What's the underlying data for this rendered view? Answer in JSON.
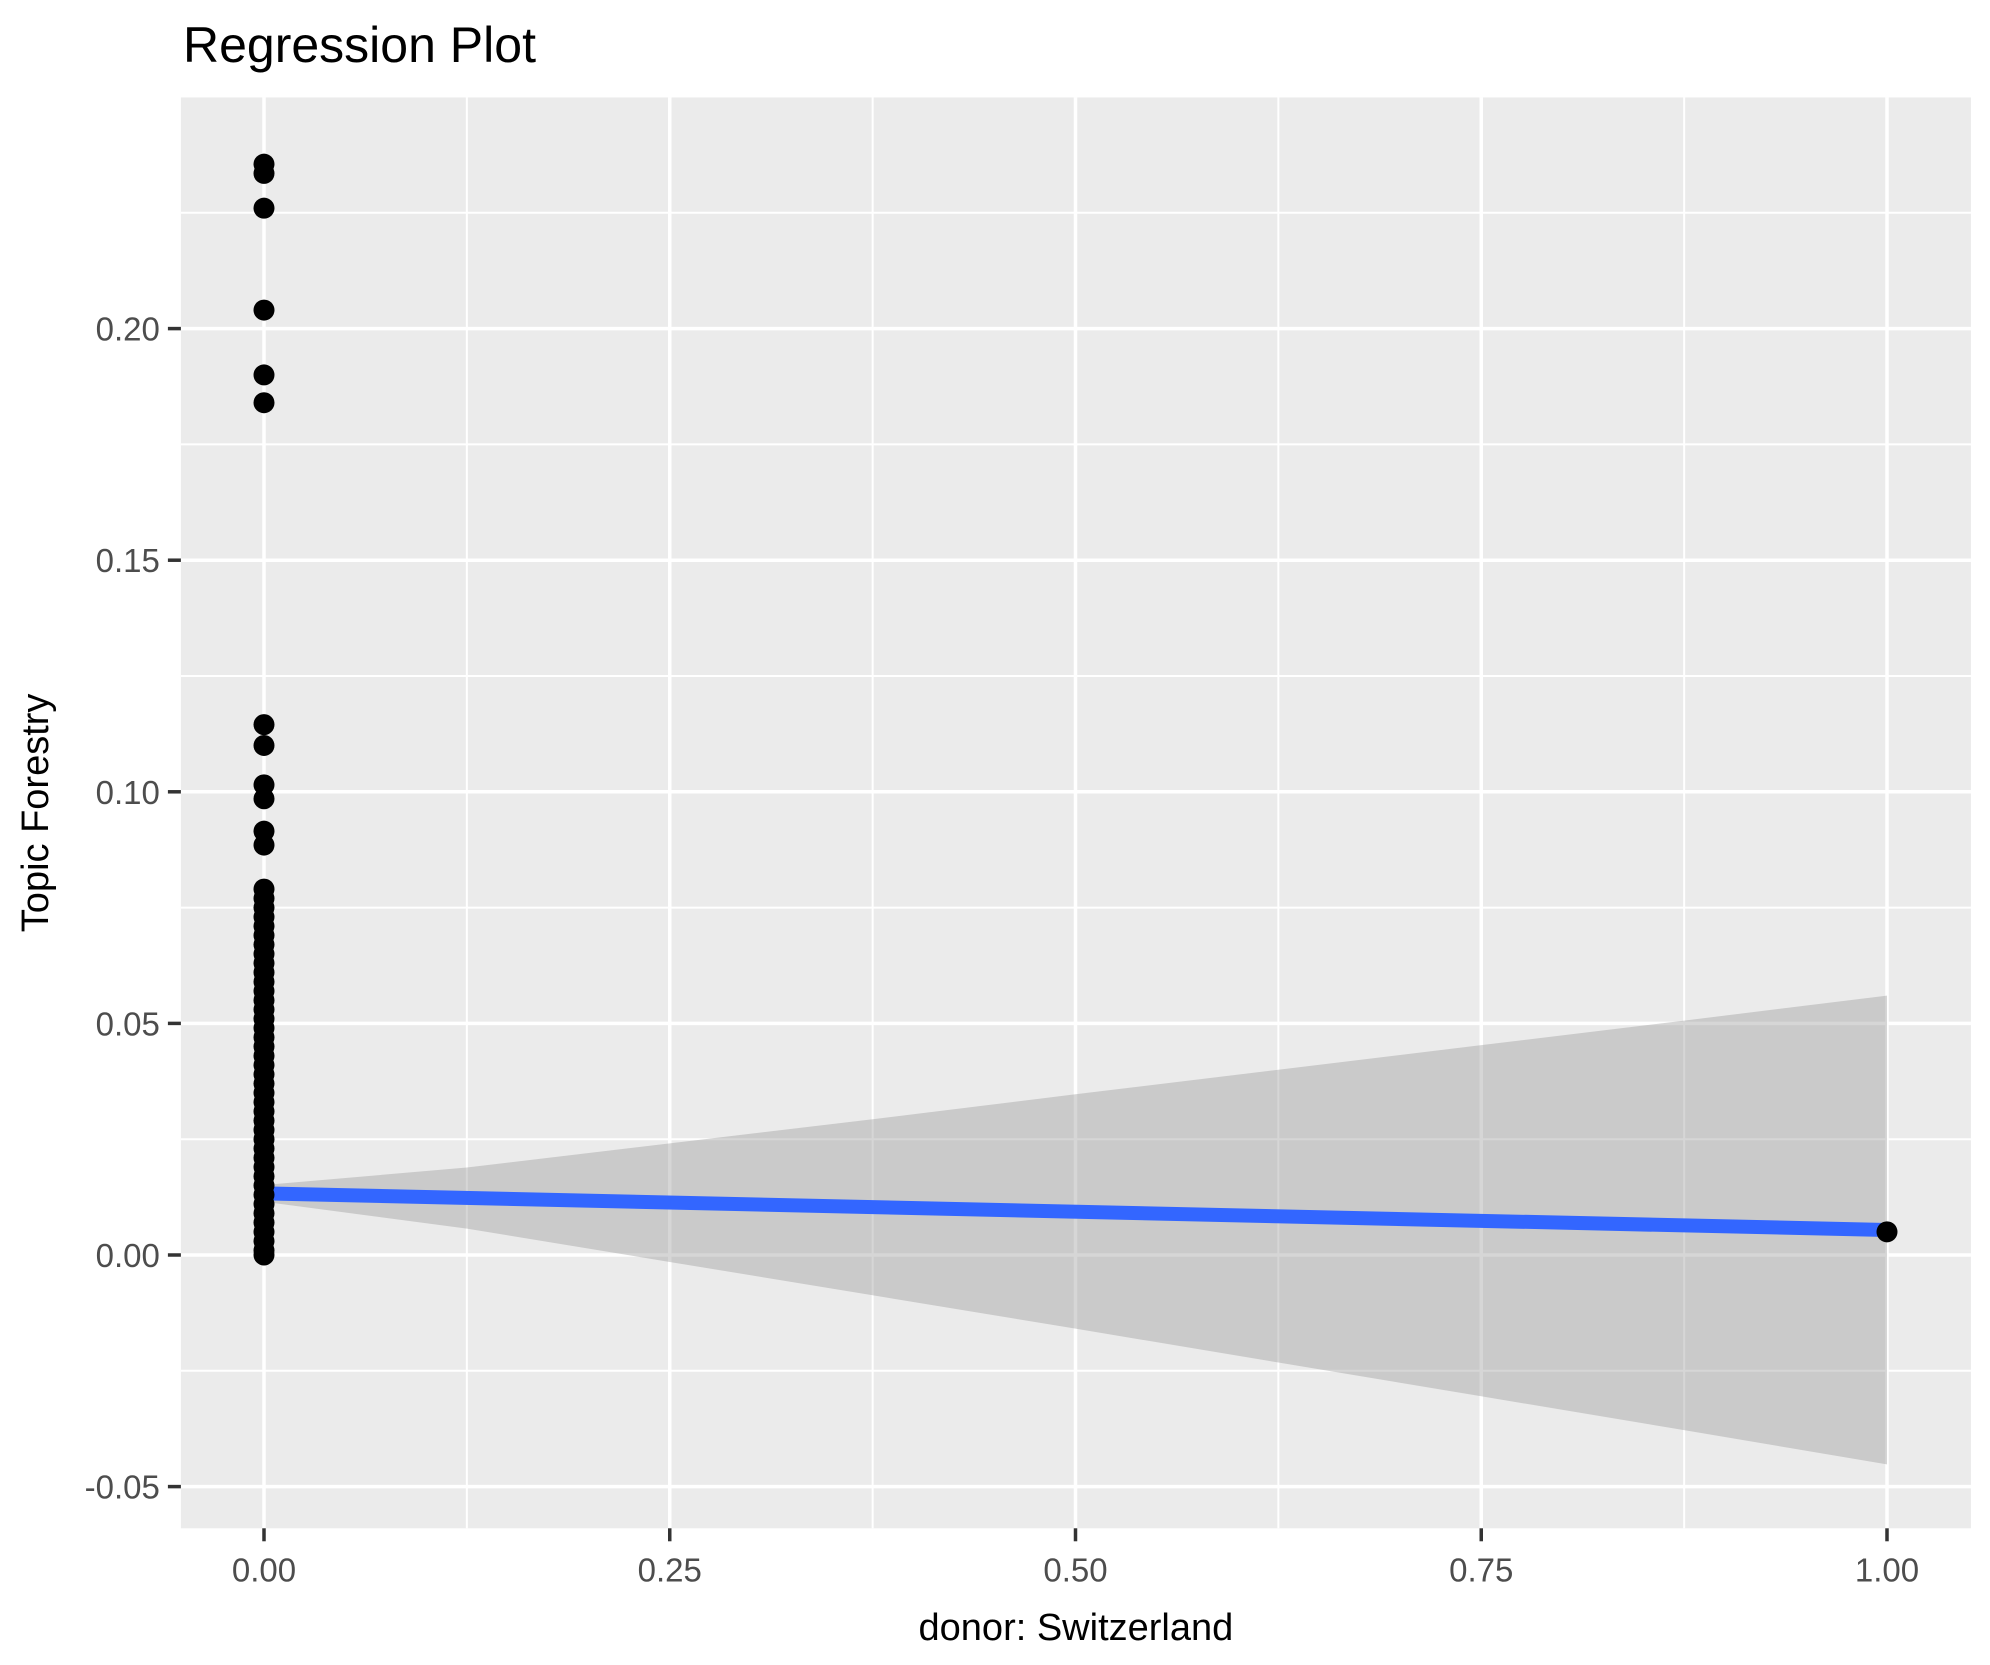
{
  "chart_data": {
    "type": "scatter",
    "title": "Regression Plot",
    "xlabel": "donor: Switzerland",
    "ylabel": "Topic Forestry",
    "legend": "none",
    "grid": "white major+minor gridlines on gray panel (ggplot theme_gray)",
    "xlim": [
      -0.0512,
      1.0517
    ],
    "ylim": [
      -0.059,
      0.2499
    ],
    "x_ticks": {
      "values": [
        0.0,
        0.25,
        0.5,
        0.75,
        1.0
      ],
      "labels": [
        "0.00",
        "0.25",
        "0.50",
        "0.75",
        "1.00"
      ]
    },
    "y_ticks": {
      "values": [
        -0.05,
        0.0,
        0.05,
        0.1,
        0.15,
        0.2
      ],
      "labels": [
        "-0.05",
        "0.00",
        "0.05",
        "0.10",
        "0.15",
        "0.20"
      ]
    },
    "series": [
      {
        "name": "observations at donor = 0",
        "x": 0,
        "y": [
          0.2355,
          0.2335,
          0.226,
          0.204,
          0.19,
          0.184,
          0.1145,
          0.11,
          0.1015,
          0.0985,
          0.0915,
          0.0885,
          0.079,
          0.077,
          0.075,
          0.073,
          0.071,
          0.069,
          0.067,
          0.065,
          0.063,
          0.061,
          0.059,
          0.057,
          0.055,
          0.053,
          0.051,
          0.049,
          0.047,
          0.045,
          0.043,
          0.041,
          0.039,
          0.037,
          0.035,
          0.033,
          0.031,
          0.029,
          0.027,
          0.025,
          0.023,
          0.021,
          0.019,
          0.017,
          0.015,
          0.013,
          0.011,
          0.009,
          0.007,
          0.005,
          0.003,
          0.001,
          0.0
        ]
      },
      {
        "name": "observation at donor = 1",
        "x": 1,
        "y": [
          0.005
        ]
      }
    ],
    "regression_line": {
      "x": [
        0,
        1
      ],
      "y": [
        0.0133,
        0.0054
      ]
    },
    "confidence_band": {
      "x": [
        0.0,
        0.125,
        0.25,
        0.375,
        0.5,
        0.625,
        0.75,
        0.875,
        1.0
      ],
      "upper": [
        0.0151,
        0.0189,
        0.0241,
        0.0293,
        0.0347,
        0.04,
        0.0453,
        0.0506,
        0.056
      ],
      "lower": [
        0.0115,
        0.0057,
        -0.0015,
        -0.0087,
        -0.0159,
        -0.0232,
        -0.0305,
        -0.0378,
        -0.0452
      ]
    },
    "point_radius_px": 10.5,
    "colors": {
      "panel_background": "#EBEBEB",
      "gridline": "#FFFFFF",
      "point": "#000000",
      "regression_line": "#3366FF",
      "confidence_band": "rgba(153,153,153,0.4)",
      "tick_mark": "#333333",
      "tick_text": "#4D4D4D",
      "title_text": "#000000"
    }
  }
}
